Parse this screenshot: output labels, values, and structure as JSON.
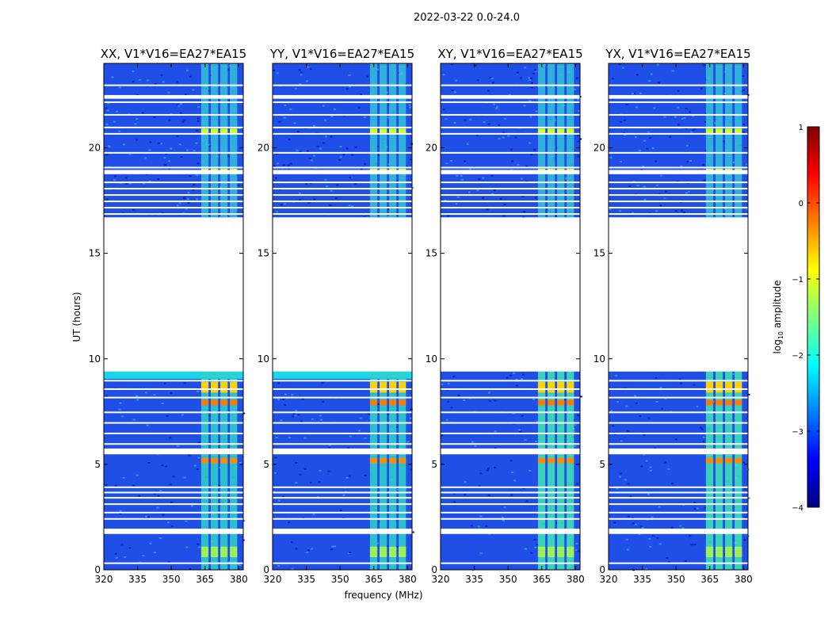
{
  "figure": {
    "suptitle": "2022-03-22 0.0-24.0"
  },
  "chart_data": {
    "type": "heatmap",
    "ylabel": "UT (hours)",
    "xlabel": "frequency (MHz)",
    "xlim": [
      320,
      382
    ],
    "ylim": [
      0,
      24
    ],
    "xticks": [
      320,
      335,
      350,
      365,
      380
    ],
    "yticks": [
      0,
      5,
      10,
      15,
      20
    ],
    "panels": [
      {
        "title": "XX, V1*V16=EA27*EA15",
        "pol": "XX"
      },
      {
        "title": "YY, V1*V16=EA27*EA15",
        "pol": "YY"
      },
      {
        "title": "XY, V1*V16=EA27*EA15",
        "pol": "XY"
      },
      {
        "title": "YX, V1*V16=EA27*EA15",
        "pol": "YX"
      }
    ],
    "data_gaps_hours": [
      [
        9.4,
        16.7
      ]
    ],
    "bright_band_mhz": [
      363,
      380
    ],
    "colorbar": {
      "label": "log10 amplitude",
      "label_main": "log",
      "label_sub": "10",
      "label_rest": " amplitude",
      "range": [
        -4,
        1
      ],
      "ticks": [
        1,
        0,
        -1,
        -2,
        -3,
        -4
      ],
      "colormap": "jet",
      "colors": [
        "#00007f",
        "#0000ff",
        "#007fff",
        "#00ffff",
        "#7fff7f",
        "#ffff00",
        "#ff7f00",
        "#ff0000",
        "#7f0000"
      ]
    }
  }
}
